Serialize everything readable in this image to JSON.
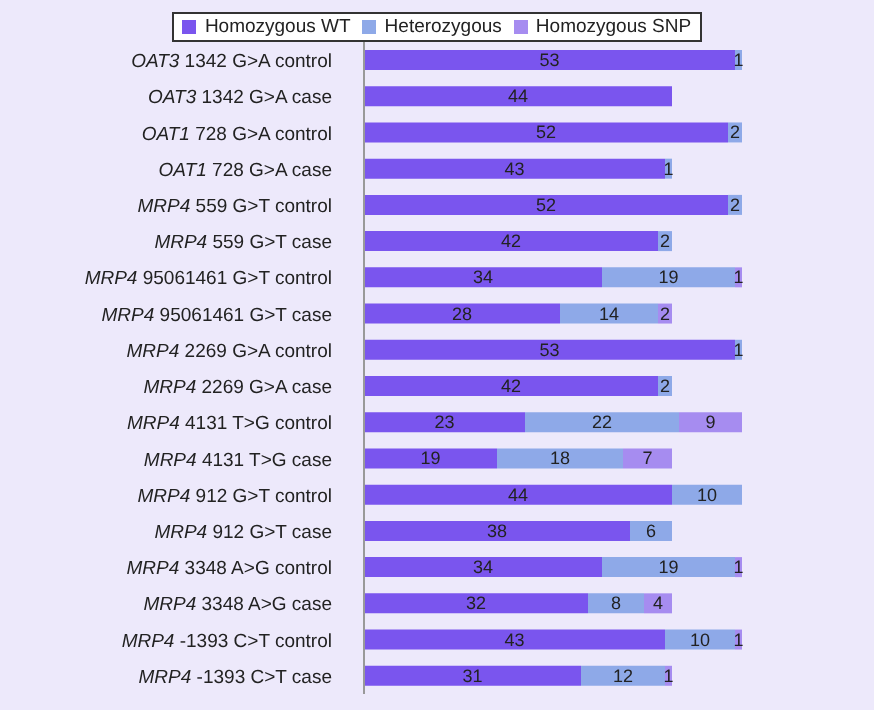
{
  "chart_data": {
    "type": "bar",
    "orientation": "horizontal",
    "stacked": true,
    "data_labels": true,
    "legend": "top",
    "categories": [
      "OAT3 1342 G>A control",
      "OAT3 1342 G>A case",
      "OAT1 728 G>A control",
      "OAT1 728 G>A case",
      "MRP4 559 G>T control",
      "MRP4 559 G>T case",
      "MRP4 95061461 G>T control",
      "MRP4 95061461 G>T case",
      "MRP4 2269 G>A control",
      "MRP4 2269 G>A case",
      "MRP4 4131 T>G control",
      "MRP4 4131 T>G case",
      "MRP4 912 G>T control",
      "MRP4 912 G>T case",
      "MRP4 3348 A>G control",
      "MRP4 3348 A>G case",
      "MRP4 -1393 C>T control",
      "MRP4 -1393 C>T case"
    ],
    "series": [
      {
        "name": "Homozygous WT",
        "color": "#7a55ee",
        "values": [
          53,
          44,
          52,
          43,
          52,
          42,
          34,
          28,
          53,
          42,
          23,
          19,
          44,
          38,
          34,
          32,
          43,
          31
        ]
      },
      {
        "name": "Heterozygous",
        "color": "#8ea9e8",
        "values": [
          1,
          null,
          2,
          1,
          2,
          2,
          19,
          14,
          1,
          2,
          22,
          18,
          10,
          6,
          19,
          8,
          10,
          12
        ]
      },
      {
        "name": "Homozygous SNP",
        "color": "#a68cf0",
        "values": [
          null,
          null,
          null,
          null,
          null,
          null,
          1,
          2,
          null,
          null,
          9,
          7,
          null,
          null,
          1,
          4,
          1,
          1
        ]
      }
    ]
  }
}
